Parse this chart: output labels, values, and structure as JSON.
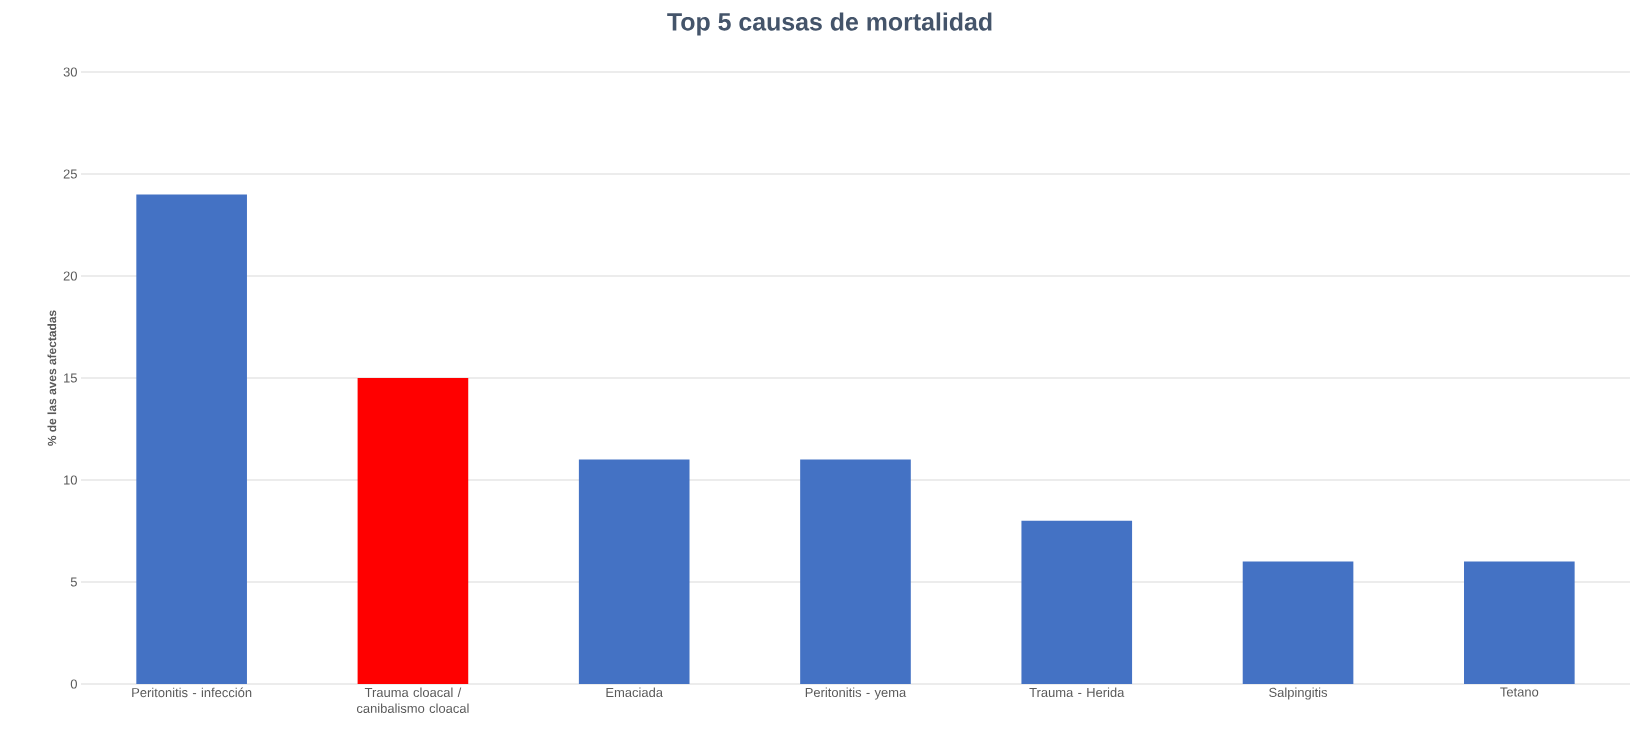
{
  "chart_data": {
    "type": "bar",
    "title": "Top 5 causas de mortalidad",
    "ylabel": "% de las aves afectadas",
    "categories": [
      "Peritonitis - infección",
      "Trauma cloacal / canibalismo cloacal",
      "Emaciada",
      "Peritonitis - yema",
      "Trauma - Herida",
      "Salpingitis",
      "Tetano"
    ],
    "values": [
      24,
      15,
      11,
      11,
      8,
      6,
      6
    ],
    "colors": [
      "#4472c4",
      "#ff0000",
      "#4472c4",
      "#4472c4",
      "#4472c4",
      "#4472c4",
      "#4472c4"
    ],
    "ylim": [
      0,
      30
    ],
    "yticks": [
      0,
      5,
      10,
      15,
      20,
      25,
      30
    ],
    "grid": "y"
  }
}
